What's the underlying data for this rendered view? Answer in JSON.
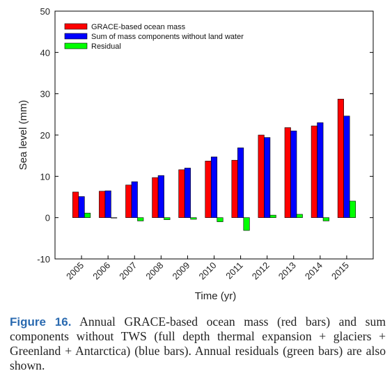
{
  "chart_data": {
    "type": "bar",
    "categories": [
      "2005",
      "2006",
      "2007",
      "2008",
      "2009",
      "2010",
      "2011",
      "2012",
      "2013",
      "2014",
      "2015"
    ],
    "series": [
      {
        "name": "GRACE-based ocean mass",
        "color": "#ff0000",
        "values": [
          6.2,
          6.4,
          7.9,
          9.7,
          11.6,
          13.7,
          13.9,
          20.0,
          21.8,
          22.2,
          28.7
        ]
      },
      {
        "name": "Sum of mass components without land water",
        "color": "#0000ff",
        "values": [
          5.1,
          6.5,
          8.7,
          10.2,
          12.0,
          14.7,
          16.9,
          19.4,
          21.0,
          23.0,
          24.6
        ]
      },
      {
        "name": "Residual",
        "color": "#00ff00",
        "values": [
          1.1,
          -0.1,
          -0.8,
          -0.5,
          -0.4,
          -1.0,
          -3.1,
          0.6,
          0.8,
          -0.8,
          4.0
        ]
      }
    ],
    "xlabel": "Time (yr)",
    "ylabel": "Sea level (mm)",
    "ylim": [
      -10,
      50
    ],
    "yticks": [
      "-10",
      "0",
      "10",
      "20",
      "30",
      "40",
      "50"
    ],
    "grid": false,
    "legend_position": "top-left"
  },
  "caption": {
    "label": "Figure 16.",
    "text": "Annual GRACE-based ocean mass (red bars) and sum components without TWS (full depth thermal expansion + glaciers + Greenland + Antarctica) (blue bars). Annual residuals (green bars) are also shown."
  }
}
